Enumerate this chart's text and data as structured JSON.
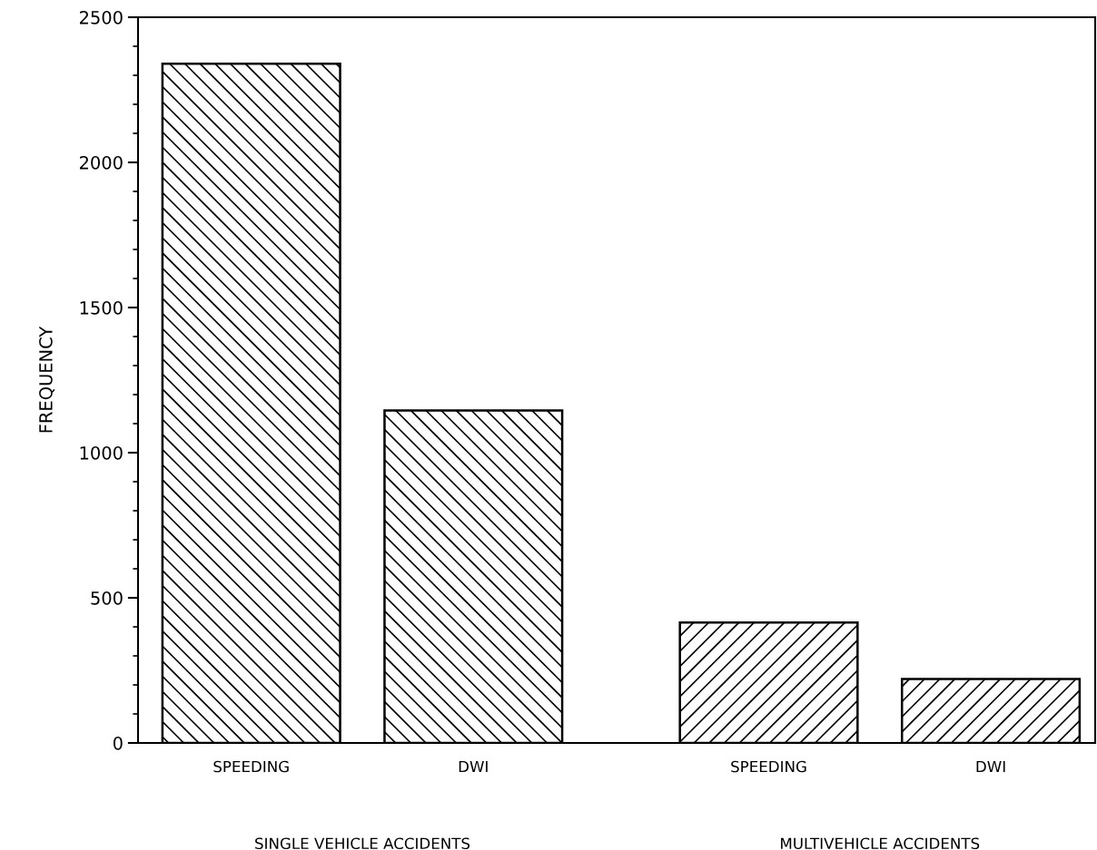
{
  "chart_data": {
    "type": "bar",
    "ylabel": "FREQUENCY",
    "categories": [
      "SPEEDING",
      "DWI",
      "SPEEDING",
      "DWI"
    ],
    "series": [
      {
        "values": [
          2340,
          1145,
          null,
          null
        ]
      },
      {
        "values": [
          null,
          null,
          415,
          220
        ]
      }
    ],
    "annotations": [
      "SINGLE VEHICLE ACCIDENTS",
      "MULTIVEHICLE ACCIDENTS"
    ],
    "ylim": [
      0,
      2500
    ],
    "yticks": [
      0,
      {
        "value": 100,
        "label": null
      },
      {
        "value": 200,
        "label": null
      },
      {
        "value": 300,
        "label": null
      },
      {
        "value": 400,
        "label": null
      },
      500,
      {
        "value": 600,
        "label": null
      },
      {
        "value": 700,
        "label": null
      },
      {
        "value": 800,
        "label": null
      },
      {
        "value": 900,
        "label": null
      },
      1000,
      {
        "value": 1100,
        "label": null
      },
      {
        "value": 1200,
        "label": null
      },
      {
        "value": 1300,
        "label": null
      },
      {
        "value": 1400,
        "label": null
      },
      1500,
      {
        "value": 1600,
        "label": null
      },
      {
        "value": 1700,
        "label": null
      },
      {
        "value": 1800,
        "label": null
      },
      {
        "value": 1900,
        "label": null
      },
      2000,
      {
        "value": 2100,
        "label": null
      },
      {
        "value": 2200,
        "label": null
      },
      {
        "value": 2300,
        "label": null
      },
      {
        "value": 2400,
        "label": null
      },
      2500
    ],
    "grid": false
  }
}
